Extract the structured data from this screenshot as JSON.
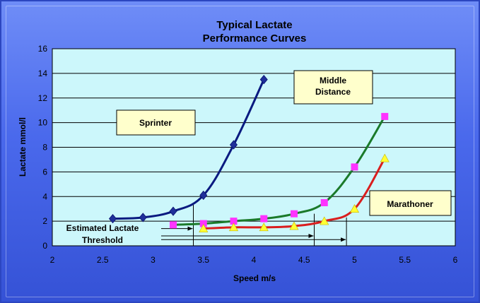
{
  "chart_data": {
    "type": "line",
    "title": [
      "Typical Lactate",
      "Performance Curves"
    ],
    "xlabel": "Speed m/s",
    "ylabel": "Lactate mmol/l",
    "xlim": [
      2,
      6
    ],
    "ylim": [
      0,
      16
    ],
    "xticks": [
      "2",
      "2.5",
      "3",
      "3.5",
      "4",
      "4.5",
      "5",
      "5.5",
      "6"
    ],
    "yticks": [
      "0",
      "2",
      "4",
      "6",
      "8",
      "10",
      "12",
      "14",
      "16"
    ],
    "grid": "horizontal",
    "colors": {
      "plot_bg": "#ccf7fb",
      "label_box": "#ffffcc",
      "sprinter_line": "#0a1a80",
      "sprinter_marker": "#1f2f9a",
      "middle_line": "#1b7a2a",
      "middle_marker": "#ff33ff",
      "marathon_line": "#d91e1e",
      "marathon_marker": "#ffff33"
    },
    "series": [
      {
        "name": "Sprinter",
        "marker": "diamond",
        "x": [
          2.6,
          2.9,
          3.2,
          3.5,
          3.8,
          4.1
        ],
        "y": [
          2.2,
          2.3,
          2.8,
          4.1,
          8.2,
          13.5
        ]
      },
      {
        "name": "Middle Distance",
        "marker": "square",
        "x": [
          3.2,
          3.5,
          3.8,
          4.1,
          4.4,
          4.7,
          5.0,
          5.3
        ],
        "y": [
          1.7,
          1.8,
          2.0,
          2.2,
          2.6,
          3.5,
          6.4,
          10.5
        ]
      },
      {
        "name": "Marathoner",
        "marker": "triangle",
        "x": [
          3.5,
          3.8,
          4.1,
          4.4,
          4.7,
          5.0,
          5.3
        ],
        "y": [
          1.4,
          1.5,
          1.5,
          1.6,
          2.0,
          3.0,
          7.1
        ]
      }
    ],
    "series_labels": {
      "sprinter": "Sprinter",
      "middle": [
        "Middle",
        "Distance"
      ],
      "marathoner": "Marathoner"
    },
    "threshold_note": [
      "Estimated Lactate",
      "Threshold"
    ],
    "thresholds": [
      {
        "x": 3.4,
        "y": 3.4
      },
      {
        "x": 4.6,
        "y": 2.6
      },
      {
        "x": 4.92,
        "y": 2.3
      }
    ],
    "threshold_arrows": [
      {
        "x_end": 3.4,
        "y": 1.4
      },
      {
        "x_end": 4.6,
        "y": 0.8
      },
      {
        "x_end": 4.92,
        "y": 0.5
      }
    ]
  }
}
